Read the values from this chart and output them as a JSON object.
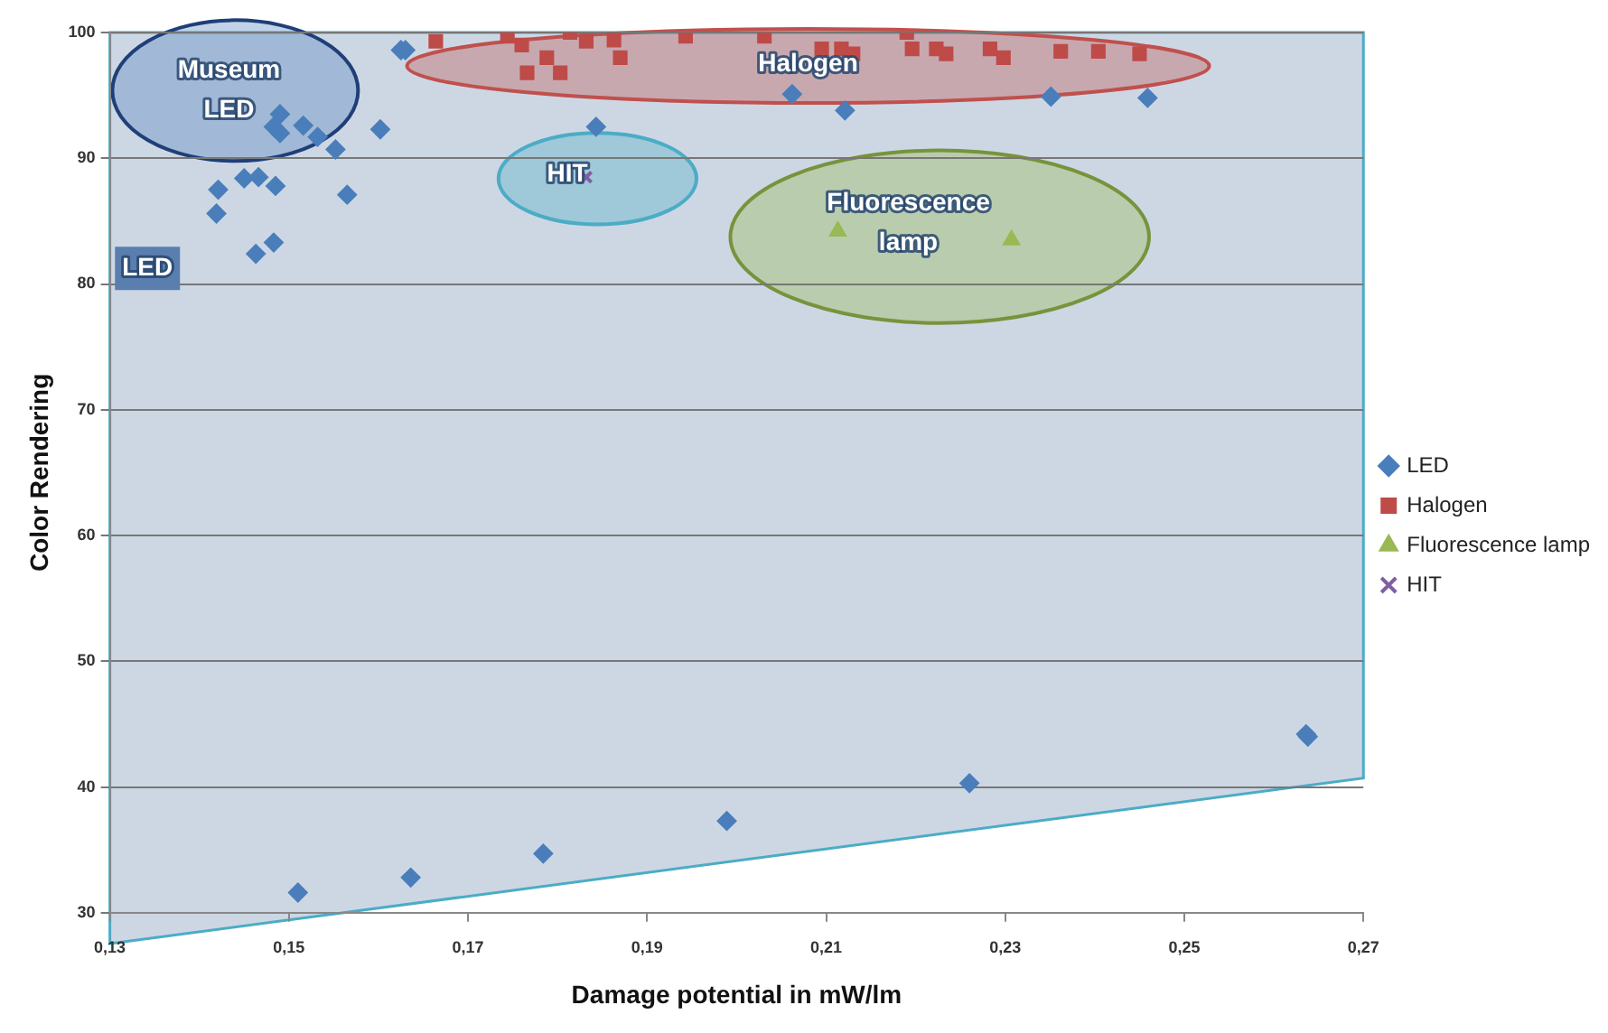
{
  "chart_data": {
    "type": "scatter",
    "xlabel": "Damage potential in mW/lm",
    "ylabel": "Color Rendering",
    "xlim": [
      0.13,
      0.27
    ],
    "xticks": [
      {
        "value": 0.13,
        "label": "0,13"
      },
      {
        "value": 0.15,
        "label": "0,15"
      },
      {
        "value": 0.17,
        "label": "0,17"
      },
      {
        "value": 0.19,
        "label": "0,19"
      },
      {
        "value": 0.21,
        "label": "0,21"
      },
      {
        "value": 0.23,
        "label": "0,23"
      },
      {
        "value": 0.25,
        "label": "0,25"
      },
      {
        "value": 0.27,
        "label": "0,27"
      }
    ],
    "ylim": [
      30,
      100
    ],
    "yticks": [
      30,
      40,
      50,
      60,
      70,
      80,
      90,
      100
    ],
    "grid": "y",
    "legend": "right",
    "series": [
      {
        "name": "LED",
        "color": "#4a7ebb",
        "marker": "diamond",
        "x": [
          0.1625,
          0.163,
          0.149,
          0.1483,
          0.149,
          0.1516,
          0.1532,
          0.1552,
          0.1602,
          0.1843,
          0.1421,
          0.145,
          0.1466,
          0.1485,
          0.1565,
          0.1419,
          0.1463,
          0.1483,
          0.2062,
          0.2121,
          0.2351,
          0.2459,
          0.151,
          0.1636,
          0.1784,
          0.1989,
          0.226,
          0.2638,
          0.2636
        ],
        "values": [
          98.6,
          98.6,
          93.5,
          92.5,
          92,
          92.6,
          91.7,
          90.7,
          92.3,
          92.5,
          87.5,
          88.4,
          88.5,
          87.8,
          87.1,
          85.6,
          82.4,
          83.3,
          95.1,
          93.8,
          94.9,
          94.8,
          31.6,
          32.8,
          34.7,
          37.3,
          40.3,
          44,
          44.2
        ]
      },
      {
        "name": "Halogen",
        "color": "#be4b48",
        "marker": "square",
        "x": [
          0.1664,
          0.1744,
          0.176,
          0.1814,
          0.1832,
          0.1863,
          0.187,
          0.1788,
          0.1766,
          0.1803,
          0.1943,
          0.2031,
          0.2095,
          0.2117,
          0.213,
          0.219,
          0.2196,
          0.2223,
          0.2234,
          0.2283,
          0.2298,
          0.2362,
          0.2404,
          0.245
        ],
        "values": [
          99.3,
          99.7,
          99,
          100,
          99.3,
          99.4,
          98,
          98,
          96.8,
          96.8,
          99.7,
          99.7,
          98.7,
          98.7,
          98.3,
          100,
          98.7,
          98.7,
          98.3,
          98.7,
          98,
          98.5,
          98.5,
          98.3
        ]
      },
      {
        "name": "Fluorescence lamp",
        "color": "#98b954",
        "marker": "triangle",
        "x": [
          0.2113,
          0.2307
        ],
        "values": [
          84.2,
          83.5
        ]
      },
      {
        "name": "HIT",
        "color": "#7d60a0",
        "marker": "cross",
        "x": [
          0.1832
        ],
        "values": [
          88.5
        ]
      }
    ],
    "annotations": [
      "Museum LED",
      "LED",
      "HIT",
      "Halogen",
      "Fluorescence lamp"
    ]
  }
}
